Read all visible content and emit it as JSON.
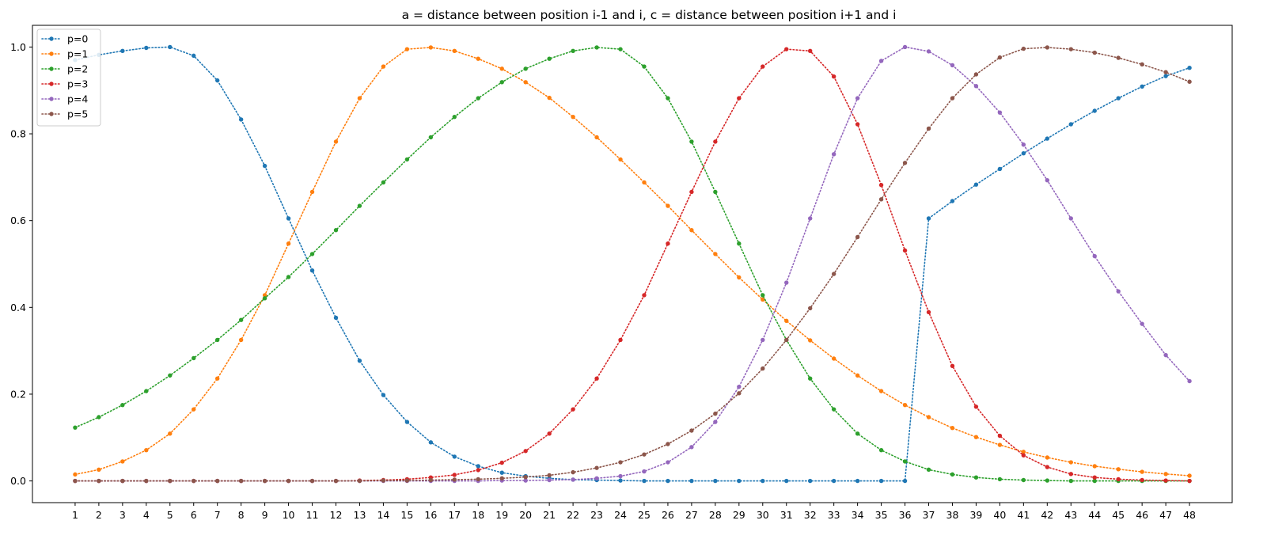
{
  "chart_data": {
    "type": "line",
    "title": "a = distance between position i-1 and i, c = distance between position i+1 and i",
    "xlabel": "",
    "ylabel": "",
    "xlim": [
      -0.8,
      49.8
    ],
    "ylim": [
      -0.05,
      1.05
    ],
    "x_ticks": [
      1,
      2,
      3,
      4,
      5,
      6,
      7,
      8,
      9,
      10,
      11,
      12,
      13,
      14,
      15,
      16,
      17,
      18,
      19,
      20,
      21,
      22,
      23,
      24,
      25,
      26,
      27,
      28,
      29,
      30,
      31,
      32,
      33,
      34,
      35,
      36,
      37,
      38,
      39,
      40,
      41,
      42,
      43,
      44,
      45,
      46,
      47,
      48
    ],
    "y_ticks": [
      0.0,
      0.2,
      0.4,
      0.6,
      0.8,
      1.0
    ],
    "y_tick_labels": [
      "0.0",
      "0.2",
      "0.4",
      "0.6",
      "0.8",
      "1.0"
    ],
    "grid": false,
    "legend_position": "upper-left",
    "line_style": "dotted",
    "marker": "circle",
    "x": [
      1,
      2,
      3,
      4,
      5,
      6,
      7,
      8,
      9,
      10,
      11,
      12,
      13,
      14,
      15,
      16,
      17,
      18,
      19,
      20,
      21,
      22,
      23,
      24,
      25,
      26,
      27,
      28,
      29,
      30,
      31,
      32,
      33,
      34,
      35,
      36,
      37,
      38,
      39,
      40,
      41,
      42,
      43,
      44,
      45,
      46,
      47,
      48
    ],
    "series": [
      {
        "name": "p=0",
        "color": "#1f77b4",
        "values": [
          0.97,
          0.982,
          0.991,
          0.998,
          1.0,
          0.98,
          0.923,
          0.833,
          0.726,
          0.605,
          0.485,
          0.376,
          0.277,
          0.198,
          0.136,
          0.089,
          0.056,
          0.034,
          0.019,
          0.011,
          0.006,
          0.003,
          0.002,
          0.001,
          0.0,
          0.0,
          0.0,
          0.0,
          0.0,
          0.0,
          0.0,
          0.0,
          0.0,
          0.0,
          0.0,
          0.0,
          0.605,
          0.645,
          0.683,
          0.719,
          0.755,
          0.789,
          0.822,
          0.853,
          0.882,
          0.909,
          0.933,
          0.952
        ]
      },
      {
        "name": "p=1",
        "color": "#ff7f0e",
        "values": [
          0.015,
          0.026,
          0.045,
          0.071,
          0.109,
          0.165,
          0.236,
          0.325,
          0.428,
          0.547,
          0.666,
          0.782,
          0.882,
          0.955,
          0.995,
          0.999,
          0.991,
          0.973,
          0.95,
          0.919,
          0.883,
          0.839,
          0.792,
          0.741,
          0.688,
          0.634,
          0.578,
          0.523,
          0.469,
          0.418,
          0.369,
          0.324,
          0.282,
          0.243,
          0.207,
          0.175,
          0.147,
          0.122,
          0.101,
          0.083,
          0.067,
          0.054,
          0.043,
          0.034,
          0.027,
          0.021,
          0.016,
          0.012
        ]
      },
      {
        "name": "p=2",
        "color": "#2ca02c",
        "values": [
          0.123,
          0.147,
          0.175,
          0.207,
          0.243,
          0.283,
          0.325,
          0.371,
          0.421,
          0.47,
          0.523,
          0.578,
          0.634,
          0.688,
          0.741,
          0.792,
          0.839,
          0.882,
          0.919,
          0.95,
          0.973,
          0.991,
          0.999,
          0.995,
          0.955,
          0.882,
          0.782,
          0.666,
          0.547,
          0.428,
          0.325,
          0.236,
          0.165,
          0.109,
          0.071,
          0.045,
          0.026,
          0.015,
          0.008,
          0.004,
          0.002,
          0.001,
          0.0,
          0.0,
          0.0,
          0.0,
          0.0,
          0.0
        ]
      },
      {
        "name": "p=3",
        "color": "#d62728",
        "values": [
          0.0,
          0.0,
          0.0,
          0.0,
          0.0,
          0.0,
          0.0,
          0.0,
          0.0,
          0.0,
          0.0,
          0.0,
          0.001,
          0.002,
          0.004,
          0.008,
          0.014,
          0.025,
          0.042,
          0.069,
          0.109,
          0.165,
          0.236,
          0.325,
          0.428,
          0.547,
          0.666,
          0.782,
          0.882,
          0.955,
          0.995,
          0.991,
          0.932,
          0.822,
          0.682,
          0.531,
          0.389,
          0.265,
          0.171,
          0.104,
          0.059,
          0.032,
          0.016,
          0.008,
          0.004,
          0.002,
          0.001,
          0.0
        ]
      },
      {
        "name": "p=4",
        "color": "#9467bd",
        "values": [
          0.0,
          0.0,
          0.0,
          0.0,
          0.0,
          0.0,
          0.0,
          0.0,
          0.0,
          0.0,
          0.0,
          0.0,
          0.0,
          0.0,
          0.0,
          0.0,
          0.0,
          0.0,
          0.001,
          0.001,
          0.002,
          0.003,
          0.006,
          0.011,
          0.022,
          0.043,
          0.078,
          0.136,
          0.217,
          0.325,
          0.457,
          0.605,
          0.753,
          0.882,
          0.968,
          1.0,
          0.99,
          0.958,
          0.91,
          0.849,
          0.775,
          0.693,
          0.605,
          0.518,
          0.437,
          0.362,
          0.29,
          0.23
        ]
      },
      {
        "name": "p=5",
        "color": "#8c564b",
        "values": [
          0.0,
          0.0,
          0.0,
          0.0,
          0.0,
          0.0,
          0.0,
          0.0,
          0.0,
          0.0,
          0.0,
          0.0,
          0.0,
          0.001,
          0.001,
          0.002,
          0.003,
          0.004,
          0.006,
          0.009,
          0.013,
          0.02,
          0.03,
          0.043,
          0.061,
          0.085,
          0.116,
          0.155,
          0.202,
          0.259,
          0.325,
          0.398,
          0.477,
          0.562,
          0.649,
          0.733,
          0.812,
          0.882,
          0.937,
          0.976,
          0.996,
          0.999,
          0.995,
          0.987,
          0.975,
          0.96,
          0.942,
          0.92
        ]
      }
    ]
  }
}
